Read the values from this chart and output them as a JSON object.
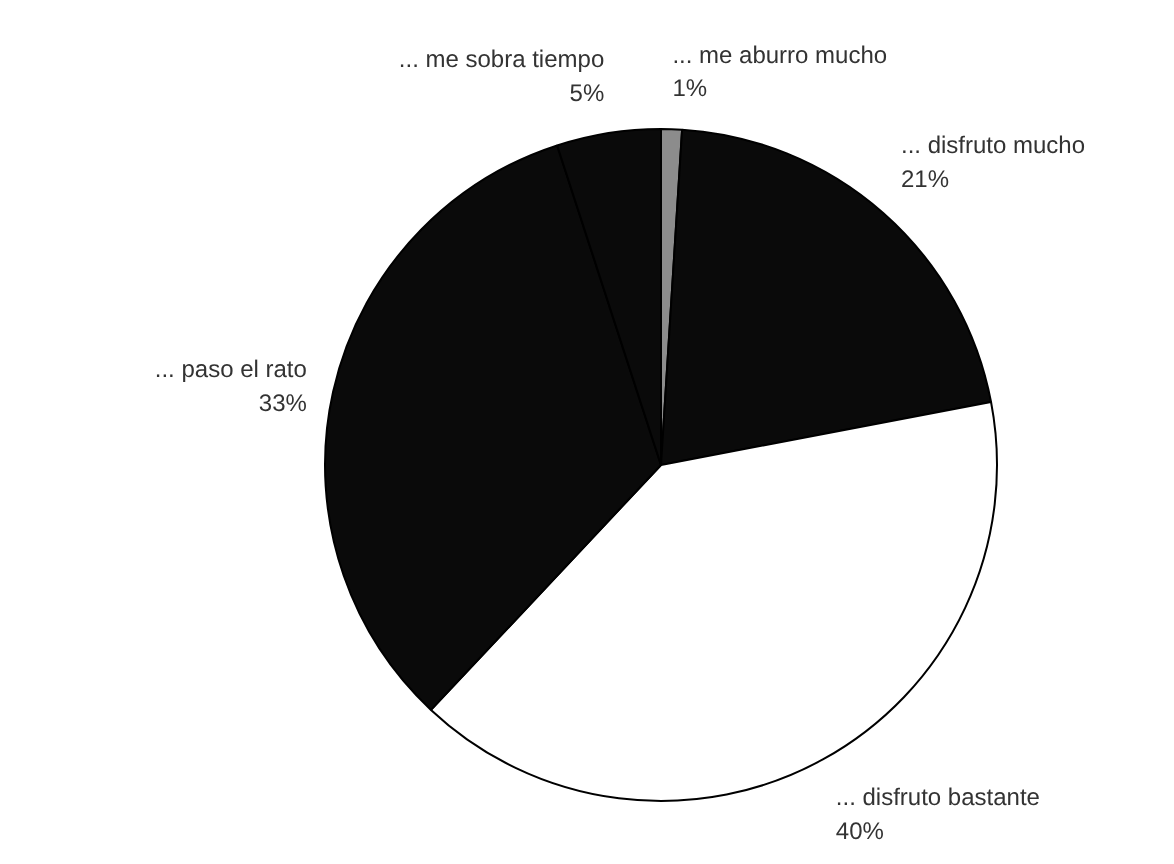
{
  "chart_data": {
    "type": "pie",
    "categories": [
      "... me aburro mucho",
      "... disfruto mucho",
      "... disfruto bastante",
      "... paso el rato",
      "... me sobra tiempo"
    ],
    "values": [
      1,
      21,
      40,
      33,
      5
    ],
    "value_labels": [
      "1%",
      "21%",
      "40%",
      "33%",
      "5%"
    ],
    "colors": [
      "#8c8c8c",
      "#0a0a0a",
      "#ffffff",
      "#0a0a0a",
      "#0a0a0a"
    ]
  }
}
